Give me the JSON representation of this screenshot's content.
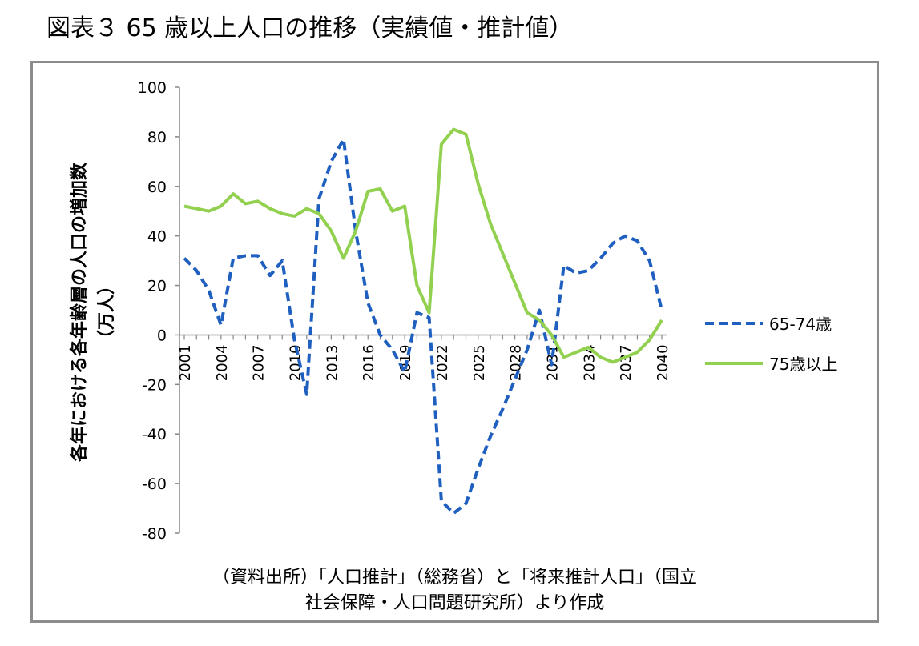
{
  "figure": {
    "title": "図表３ 65 歳以上人口の推移（実績値・推計値）",
    "source_line1": "（資料出所）「人口推計」（総務省）と「将来推計人口」（国立",
    "source_line2": "社会保障・人口問題研究所）より作成"
  },
  "chart_data": {
    "type": "line",
    "title": "",
    "xlabel": "",
    "ylabel": "各年における各年齢層の人口の増加数",
    "ylabel_unit": "（万人）",
    "ylim": [
      -80,
      100
    ],
    "yticks": [
      100,
      80,
      60,
      40,
      20,
      0,
      -20,
      -40,
      -60,
      -80
    ],
    "xtick_labels": [
      "2001",
      "2004",
      "2007",
      "2010",
      "2013",
      "2016",
      "2019",
      "2022",
      "2025",
      "2028",
      "2031",
      "2034",
      "2037",
      "2040"
    ],
    "grid": false,
    "legend_position": "right",
    "x": [
      2001,
      2002,
      2003,
      2004,
      2005,
      2006,
      2007,
      2008,
      2009,
      2010,
      2011,
      2012,
      2013,
      2014,
      2015,
      2016,
      2017,
      2018,
      2019,
      2020,
      2021,
      2022,
      2023,
      2024,
      2025,
      2026,
      2027,
      2028,
      2029,
      2030,
      2031,
      2032,
      2033,
      2034,
      2035,
      2036,
      2037,
      2038,
      2039,
      2040
    ],
    "series": [
      {
        "name": "65-74歳",
        "color": "#1f5fbf",
        "dash": "dashed",
        "values": [
          31,
          26,
          18,
          4,
          31,
          32,
          32,
          24,
          30,
          -2,
          -24,
          55,
          70,
          79,
          42,
          13,
          0,
          -6,
          -15,
          9,
          7,
          -67,
          -72,
          -68,
          -54,
          -41,
          -30,
          -18,
          -6,
          10,
          -12,
          28,
          25,
          26,
          31,
          37,
          40,
          38,
          30,
          10
        ]
      },
      {
        "name": "75歳以上",
        "color": "#92d050",
        "dash": "solid",
        "values": [
          52,
          51,
          50,
          52,
          57,
          53,
          54,
          51,
          49,
          48,
          51,
          49,
          42,
          31,
          42,
          58,
          59,
          50,
          52,
          20,
          9,
          77,
          83,
          81,
          61,
          45,
          33,
          21,
          9,
          6,
          0,
          -9,
          -7,
          -5,
          -9,
          -11,
          -9,
          -7,
          -2,
          6
        ]
      }
    ]
  }
}
